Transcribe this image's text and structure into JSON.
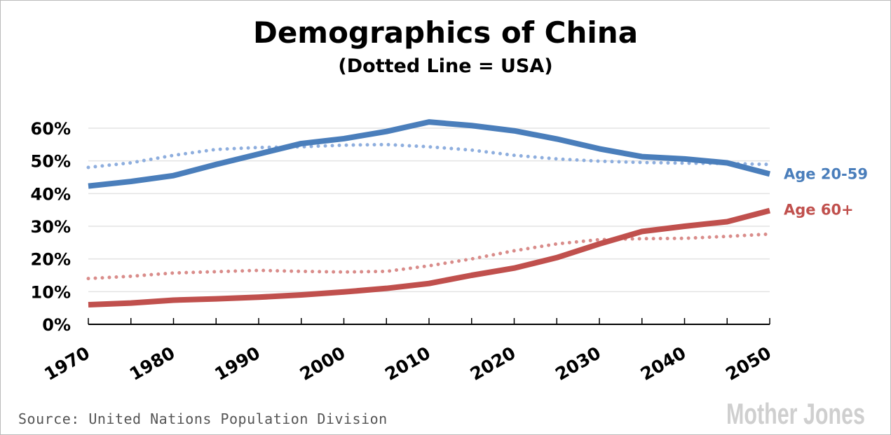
{
  "chart_data": {
    "type": "line",
    "title": "Demographics of China",
    "subtitle": "(Dotted Line = USA)",
    "x": [
      1970,
      1975,
      1980,
      1985,
      1990,
      1995,
      2000,
      2005,
      2010,
      2015,
      2020,
      2025,
      2030,
      2035,
      2040,
      2045,
      2050
    ],
    "x_tick_labels": [
      "1970",
      "1980",
      "1990",
      "2000",
      "2010",
      "2020",
      "2030",
      "2040",
      "2050"
    ],
    "y_tick_labels": [
      "0%",
      "10%",
      "20%",
      "30%",
      "40%",
      "50%",
      "60%"
    ],
    "ylim": [
      0,
      60
    ],
    "xlim": [
      1970,
      2050
    ],
    "grid": "horizontal",
    "series": [
      {
        "name": "Age 20-59",
        "country": "China",
        "style": "solid",
        "color": "#4a7ebb",
        "values": [
          42.3,
          43.7,
          45.5,
          48.9,
          52.1,
          55.3,
          56.8,
          59.0,
          61.9,
          60.8,
          59.2,
          56.7,
          53.7,
          51.3,
          50.6,
          49.4,
          46.0
        ]
      },
      {
        "name": "Age 60+",
        "country": "China",
        "style": "solid",
        "color": "#c0504d",
        "values": [
          6.0,
          6.5,
          7.4,
          7.8,
          8.3,
          9.0,
          9.9,
          11.0,
          12.5,
          15.0,
          17.2,
          20.4,
          24.6,
          28.4,
          30.0,
          31.4,
          34.8
        ]
      },
      {
        "country": "USA",
        "style": "dotted",
        "color": "#8eaede",
        "values": [
          48.0,
          49.4,
          51.7,
          53.5,
          54.1,
          54.3,
          54.8,
          55.0,
          54.3,
          53.3,
          51.7,
          50.6,
          49.9,
          49.5,
          49.3,
          49.2,
          48.9
        ]
      },
      {
        "country": "USA",
        "style": "dotted",
        "color": "#d98c8a",
        "values": [
          14.0,
          14.7,
          15.7,
          16.1,
          16.5,
          16.2,
          16.0,
          16.2,
          17.9,
          20.0,
          22.5,
          24.6,
          25.9,
          26.2,
          26.3,
          26.9,
          27.6
        ]
      }
    ]
  },
  "source": "Source: United Nations Population Division",
  "logo": "Mother Jones"
}
